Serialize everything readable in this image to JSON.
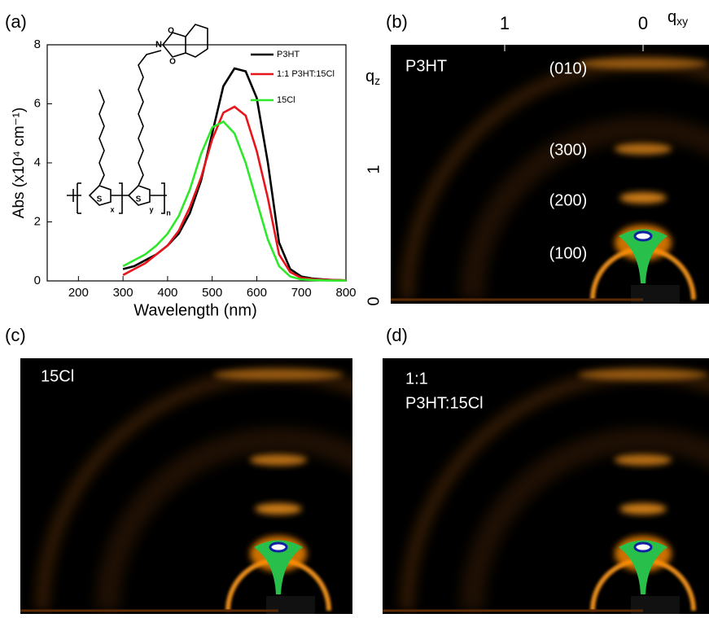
{
  "chart_data": {
    "type": "line",
    "panel_label": "(a)",
    "x_label": "Wavelength (nm)",
    "y_label": "Abs (x10⁴ cm⁻¹)",
    "x": [
      300,
      325,
      350,
      375,
      400,
      425,
      450,
      475,
      500,
      525,
      550,
      575,
      600,
      625,
      650,
      675,
      700,
      725,
      750,
      775,
      800
    ],
    "series": [
      {
        "name": "P3HT",
        "color": "#000000",
        "values": [
          0.4,
          0.5,
          0.7,
          0.9,
          1.2,
          1.6,
          2.3,
          3.4,
          5.0,
          6.6,
          7.2,
          7.1,
          6.2,
          4.0,
          1.3,
          0.4,
          0.15,
          0.08,
          0.05,
          0.03,
          0.02
        ]
      },
      {
        "name": "1:1 P3HT:15Cl",
        "color": "#e8141b",
        "values": [
          0.2,
          0.4,
          0.6,
          0.9,
          1.2,
          1.7,
          2.5,
          3.5,
          4.8,
          5.7,
          5.9,
          5.6,
          4.4,
          2.8,
          0.9,
          0.3,
          0.1,
          0.06,
          0.04,
          0.03,
          0.02
        ]
      },
      {
        "name": "15Cl",
        "color": "#2ee82a",
        "values": [
          0.5,
          0.7,
          0.9,
          1.2,
          1.6,
          2.2,
          3.1,
          4.3,
          5.2,
          5.4,
          5.0,
          4.0,
          2.7,
          1.4,
          0.5,
          0.15,
          0.05,
          0.03,
          0.02,
          0.01,
          0.01
        ]
      }
    ],
    "xlim": [
      130,
      800
    ],
    "xticks": [
      200,
      300,
      400,
      500,
      600,
      700,
      800
    ],
    "ylim": [
      0,
      8
    ],
    "yticks": [
      0,
      2,
      4,
      6,
      8
    ],
    "structure_labels": [
      "S",
      "x",
      "S",
      "y",
      "n",
      "N",
      "O",
      "O"
    ]
  },
  "panels": {
    "b": {
      "panel_label": "(b)",
      "sample": "P3HT",
      "peaks": [
        "(010)",
        "(300)",
        "(200)",
        "(100)"
      ],
      "qxy_ticks": [
        "1",
        "0"
      ],
      "qz_ticks": [
        "1",
        "0"
      ],
      "qxy_label": {
        "base": "q",
        "sub": "xy"
      },
      "qz_label": {
        "base": "q",
        "sub": "z"
      }
    },
    "c": {
      "panel_label": "(c)",
      "sample": "15Cl"
    },
    "d": {
      "panel_label": "(d)",
      "sample_lines": [
        "1:1",
        "P3HT:15Cl"
      ]
    }
  }
}
